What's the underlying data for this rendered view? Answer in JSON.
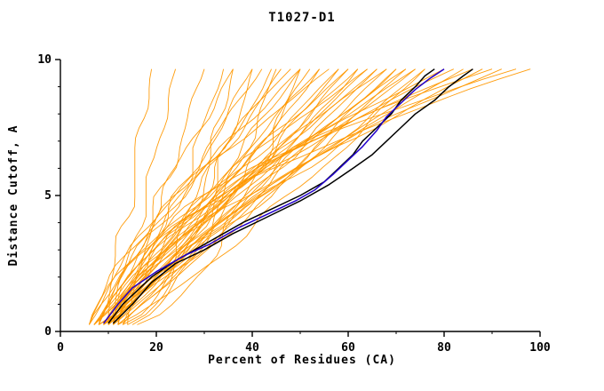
{
  "window": {
    "title": "T1027-D1"
  },
  "chart_data": {
    "type": "line",
    "title": "T1027-D1",
    "xlabel": "Percent of Residues (CA)",
    "ylabel": "Distance Cutoff, A",
    "xlim": [
      0,
      100
    ],
    "ylim": [
      0,
      10
    ],
    "x_ticks": [
      0,
      20,
      40,
      60,
      80,
      100
    ],
    "x_minor_ticks": [
      10,
      30,
      50,
      70,
      90
    ],
    "y_ticks": [
      0,
      5,
      10
    ],
    "y_minor_ticks": [
      1,
      2,
      3,
      4,
      6,
      7,
      8,
      9
    ],
    "grid": false,
    "legend": "none",
    "colors": {
      "model_lines": "#ff9800",
      "reference_lines": "#000000",
      "highlight_line": "#2200cc",
      "axis": "#000000",
      "background": "#ffffff"
    },
    "curve_y_start": 0.25,
    "curve_y_end": 9.65,
    "series_highlight": [
      {
        "name": "black-curve-1",
        "color": "#000000",
        "points": [
          [
            10,
            0.3
          ],
          [
            13,
            1
          ],
          [
            16,
            1.5
          ],
          [
            19,
            2
          ],
          [
            24,
            2.6
          ],
          [
            28,
            3
          ],
          [
            33,
            3.5
          ],
          [
            38,
            4
          ],
          [
            44,
            4.5
          ],
          [
            50,
            5
          ],
          [
            55,
            5.5
          ],
          [
            58,
            6
          ],
          [
            61,
            6.5
          ],
          [
            63,
            7
          ],
          [
            66,
            7.5
          ],
          [
            69,
            8
          ],
          [
            71,
            8.5
          ],
          [
            74,
            9
          ],
          [
            76,
            9.4
          ],
          [
            78,
            9.65
          ]
        ]
      },
      {
        "name": "black-curve-2",
        "color": "#000000",
        "points": [
          [
            11,
            0.3
          ],
          [
            15,
            1
          ],
          [
            19,
            1.8
          ],
          [
            24,
            2.5
          ],
          [
            30,
            3
          ],
          [
            36,
            3.6
          ],
          [
            43,
            4.2
          ],
          [
            50,
            4.8
          ],
          [
            56,
            5.4
          ],
          [
            61,
            6
          ],
          [
            65,
            6.5
          ],
          [
            68,
            7
          ],
          [
            71,
            7.5
          ],
          [
            74,
            8
          ],
          [
            78,
            8.5
          ],
          [
            81,
            9
          ],
          [
            84,
            9.4
          ],
          [
            86,
            9.65
          ]
        ]
      },
      {
        "name": "blue-curve",
        "color": "#2200cc",
        "points": [
          [
            9,
            0.3
          ],
          [
            12,
            1
          ],
          [
            15,
            1.6
          ],
          [
            20,
            2.2
          ],
          [
            26,
            2.8
          ],
          [
            31,
            3.2
          ],
          [
            37,
            3.8
          ],
          [
            43,
            4.3
          ],
          [
            49,
            4.8
          ],
          [
            53,
            5.2
          ],
          [
            57,
            5.8
          ],
          [
            60,
            6.3
          ],
          [
            63,
            6.8
          ],
          [
            66,
            7.4
          ],
          [
            68,
            7.9
          ],
          [
            71,
            8.4
          ],
          [
            74,
            8.9
          ],
          [
            77,
            9.3
          ],
          [
            80,
            9.65
          ]
        ]
      }
    ],
    "orange_curves_format": "[x_at_bottom, x_at_top, shape_exponent]",
    "orange_curves": [
      [
        8,
        19,
        0.8
      ],
      [
        10,
        24,
        0.9
      ],
      [
        12,
        30,
        1.0
      ],
      [
        9,
        34,
        0.7
      ],
      [
        14,
        40,
        0.6
      ],
      [
        15,
        45,
        0.65
      ],
      [
        16,
        50,
        0.6
      ],
      [
        13,
        36,
        0.55
      ],
      [
        6,
        36,
        1.0
      ],
      [
        7,
        40,
        0.9
      ],
      [
        8,
        42,
        1.1
      ],
      [
        9,
        44,
        0.8
      ],
      [
        10,
        46,
        1.0
      ],
      [
        6,
        48,
        1.2
      ],
      [
        7,
        50,
        0.9
      ],
      [
        8,
        50,
        1.3
      ],
      [
        9,
        52,
        0.8
      ],
      [
        10,
        54,
        1.1
      ],
      [
        11,
        54,
        0.9
      ],
      [
        6,
        56,
        1.4
      ],
      [
        7,
        58,
        1.0
      ],
      [
        8,
        58,
        0.85
      ],
      [
        9,
        60,
        1.2
      ],
      [
        10,
        60,
        0.95
      ],
      [
        11,
        62,
        1.1
      ],
      [
        12,
        62,
        0.9
      ],
      [
        6,
        64,
        1.3
      ],
      [
        7,
        64,
        1.0
      ],
      [
        8,
        66,
        0.9
      ],
      [
        9,
        66,
        1.15
      ],
      [
        10,
        68,
        1.0
      ],
      [
        11,
        68,
        1.35
      ],
      [
        12,
        70,
        0.95
      ],
      [
        13,
        70,
        1.1
      ],
      [
        7,
        72,
        1.2
      ],
      [
        8,
        72,
        0.9
      ],
      [
        9,
        74,
        1.05
      ],
      [
        10,
        74,
        1.3
      ],
      [
        11,
        76,
        1.0
      ],
      [
        12,
        76,
        0.85
      ],
      [
        8,
        80,
        1.5
      ],
      [
        10,
        80,
        1.1
      ],
      [
        12,
        82,
        1.6
      ],
      [
        9,
        84,
        1.2
      ],
      [
        11,
        86,
        1.8
      ],
      [
        13,
        88,
        1.4
      ],
      [
        10,
        90,
        2.0
      ],
      [
        12,
        92,
        1.6
      ],
      [
        14,
        95,
        2.2
      ],
      [
        11,
        98,
        1.9
      ]
    ]
  }
}
